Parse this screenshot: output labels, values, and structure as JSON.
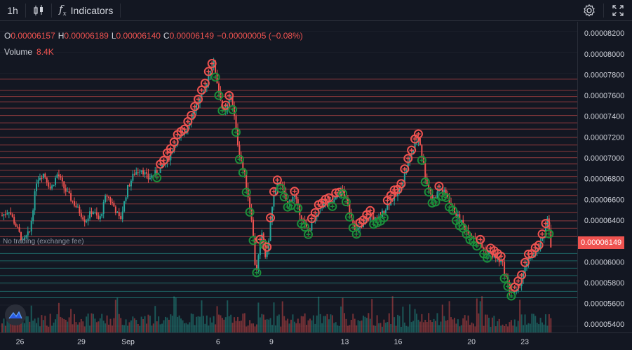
{
  "toolbar": {
    "interval": "1h",
    "indicators_label": "Indicators",
    "fx_symbol": "f",
    "icons": [
      "candlestick-chart-icon",
      "function-icon",
      "settings-gear-icon",
      "fullscreen-icon"
    ]
  },
  "legend": {
    "o_label": "O",
    "o_value": "0.00006157",
    "h_label": "H",
    "h_value": "0.00006189",
    "l_label": "L",
    "l_value": "0.00006140",
    "c_label": "C",
    "c_value": "0.00006149",
    "change": "−0.00000005 (−0.08%)",
    "volume_label": "Volume",
    "volume_value": "8.4K"
  },
  "no_trading_label": "No trading (exchange fee)",
  "last_price_label": "0.00006149",
  "colors": {
    "up": "#26a69a",
    "down": "#ef5350",
    "background": "#131722",
    "grid": "#2a2e39",
    "sell_line": "#ef5350",
    "buy_line": "#26a69a",
    "buy_circle": "#1b8f3a"
  },
  "chart_data": {
    "type": "candlestick",
    "price_axis": {
      "ticks": [
        "0.00008200",
        "0.00008000",
        "0.00007800",
        "0.00007600",
        "0.00007400",
        "0.00007200",
        "0.00007000",
        "0.00006800",
        "0.00006600",
        "0.00006400",
        "0.00006200",
        "0.00006000",
        "0.00005800",
        "0.00005600",
        "0.00005400"
      ],
      "ylim": [
        5.34e-05,
        8.29e-05
      ]
    },
    "time_axis": {
      "labels": [
        {
          "text": "26",
          "t": 0.8
        },
        {
          "text": "29",
          "t": 10.0
        },
        {
          "text": "Sep",
          "t": 17.0
        },
        {
          "text": "6",
          "t": 30.5
        },
        {
          "text": "9",
          "t": 38.5
        },
        {
          "text": "13",
          "t": 49.5
        },
        {
          "text": "16",
          "t": 57.5
        },
        {
          "text": "20",
          "t": 68.5
        },
        {
          "text": "23",
          "t": 76.5
        }
      ],
      "range": [
        0,
        82
      ]
    },
    "price_path": [
      [
        0.0,
        6.45
      ],
      [
        1.0,
        6.5
      ],
      [
        2.0,
        6.35
      ],
      [
        3.0,
        6.2
      ],
      [
        4.0,
        6.3
      ],
      [
        5.0,
        6.8
      ],
      [
        6.0,
        6.85
      ],
      [
        7.0,
        6.7
      ],
      [
        8.0,
        6.85
      ],
      [
        9.0,
        6.7
      ],
      [
        10.0,
        6.6
      ],
      [
        11.0,
        6.5
      ],
      [
        12.0,
        6.4
      ],
      [
        13.0,
        6.5
      ],
      [
        14.0,
        6.4
      ],
      [
        15.0,
        6.65
      ],
      [
        16.0,
        6.55
      ],
      [
        17.0,
        6.4
      ],
      [
        18.0,
        6.7
      ],
      [
        19.0,
        6.85
      ],
      [
        20.0,
        6.9
      ],
      [
        21.0,
        6.8
      ],
      [
        22.0,
        6.85
      ],
      [
        23.0,
        6.9
      ],
      [
        24.0,
        7.0
      ],
      [
        25.0,
        7.15
      ],
      [
        26.0,
        7.2
      ],
      [
        27.0,
        7.35
      ],
      [
        28.0,
        7.5
      ],
      [
        29.0,
        7.6
      ],
      [
        30.0,
        7.85
      ],
      [
        30.5,
        7.9
      ],
      [
        31.0,
        7.7
      ],
      [
        32.0,
        7.4
      ],
      [
        33.0,
        7.6
      ],
      [
        34.0,
        7.1
      ],
      [
        35.0,
        6.8
      ],
      [
        36.0,
        6.4
      ],
      [
        36.5,
        5.9
      ],
      [
        37.0,
        6.1
      ],
      [
        37.5,
        6.3
      ],
      [
        38.0,
        6.0
      ],
      [
        38.5,
        6.3
      ],
      [
        39.0,
        6.6
      ],
      [
        40.0,
        6.8
      ],
      [
        41.0,
        6.55
      ],
      [
        42.0,
        6.65
      ],
      [
        43.0,
        6.45
      ],
      [
        44.0,
        6.3
      ],
      [
        45.0,
        6.4
      ],
      [
        46.0,
        6.55
      ],
      [
        47.0,
        6.55
      ],
      [
        48.0,
        6.6
      ],
      [
        49.0,
        6.7
      ],
      [
        50.0,
        6.5
      ],
      [
        51.0,
        6.3
      ],
      [
        52.0,
        6.35
      ],
      [
        53.0,
        6.45
      ],
      [
        54.0,
        6.4
      ],
      [
        55.0,
        6.5
      ],
      [
        56.0,
        6.6
      ],
      [
        57.0,
        6.65
      ],
      [
        58.0,
        6.85
      ],
      [
        59.0,
        7.05
      ],
      [
        60.0,
        7.2
      ],
      [
        61.0,
        6.8
      ],
      [
        62.0,
        6.6
      ],
      [
        63.0,
        6.7
      ],
      [
        64.0,
        6.65
      ],
      [
        65.0,
        6.5
      ],
      [
        66.0,
        6.4
      ],
      [
        67.0,
        6.3
      ],
      [
        68.0,
        6.25
      ],
      [
        69.0,
        6.15
      ],
      [
        70.0,
        6.1
      ],
      [
        71.0,
        6.05
      ],
      [
        72.0,
        6.0
      ],
      [
        73.0,
        5.75
      ],
      [
        74.0,
        5.7
      ],
      [
        75.0,
        5.9
      ],
      [
        76.0,
        6.05
      ],
      [
        77.0,
        6.1
      ],
      [
        78.0,
        6.25
      ],
      [
        78.5,
        6.45
      ],
      [
        79.0,
        6.15
      ]
    ],
    "price_path_units": "1e-5",
    "order_levels": {
      "sell": [
        "0.00007745",
        "0.00007640",
        "0.00007580",
        "0.00007530",
        "0.00007470",
        "0.00007400",
        "0.00007330",
        "0.00007270",
        "0.00007190",
        "0.00007120",
        "0.00007060",
        "0.00007000",
        "0.00006940",
        "0.00006880",
        "0.00006820",
        "0.00006760",
        "0.00006700",
        "0.00006640",
        "0.00006560",
        "0.00006480",
        "0.00006400",
        "0.00006330",
        "0.00006250",
        "0.00006170"
      ],
      "buy": [
        "0.00006090",
        "0.00006020",
        "0.00005950",
        "0.00005880",
        "0.00005810",
        "0.00005730",
        "0.00005670"
      ]
    },
    "volume_bars": 320,
    "volume_max_label": ""
  }
}
